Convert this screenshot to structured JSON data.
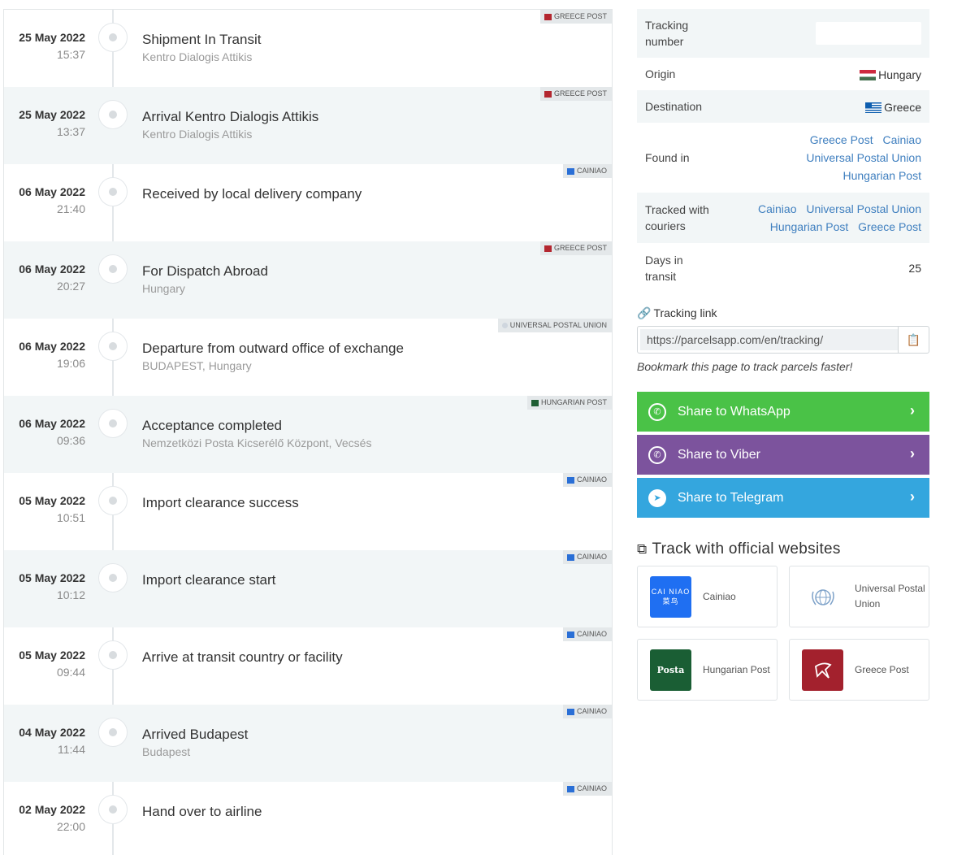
{
  "events": [
    {
      "date": "25 May 2022",
      "time": "15:37",
      "title": "Shipment In Transit",
      "location": "Kentro Dialogis Attikis",
      "courier": "GREECE POST",
      "courier_icon": "greece-post"
    },
    {
      "date": "25 May 2022",
      "time": "13:37",
      "title": "Arrival Kentro Dialogis Attikis",
      "location": "Kentro Dialogis Attikis",
      "courier": "GREECE POST",
      "courier_icon": "greece-post"
    },
    {
      "date": "06 May 2022",
      "time": "21:40",
      "title": "Received by local delivery company",
      "location": "",
      "courier": "CAINIAO",
      "courier_icon": "cainiao"
    },
    {
      "date": "06 May 2022",
      "time": "20:27",
      "title": "For Dispatch Abroad",
      "location": "Hungary",
      "courier": "GREECE POST",
      "courier_icon": "greece-post"
    },
    {
      "date": "06 May 2022",
      "time": "19:06",
      "title": "Departure from outward office of exchange",
      "location": "BUDAPEST, Hungary",
      "courier": "UNIVERSAL POSTAL UNION",
      "courier_icon": "upu"
    },
    {
      "date": "06 May 2022",
      "time": "09:36",
      "title": "Acceptance completed",
      "location": "Nemzetközi Posta Kicserélő Központ, Vecsés",
      "courier": "HUNGARIAN POST",
      "courier_icon": "hungarian-post"
    },
    {
      "date": "05 May 2022",
      "time": "10:51",
      "title": "Import clearance success",
      "location": "",
      "courier": "CAINIAO",
      "courier_icon": "cainiao"
    },
    {
      "date": "05 May 2022",
      "time": "10:12",
      "title": "Import clearance start",
      "location": "",
      "courier": "CAINIAO",
      "courier_icon": "cainiao"
    },
    {
      "date": "05 May 2022",
      "time": "09:44",
      "title": "Arrive at transit country or facility",
      "location": "",
      "courier": "CAINIAO",
      "courier_icon": "cainiao"
    },
    {
      "date": "04 May 2022",
      "time": "11:44",
      "title": "Arrived Budapest",
      "location": "Budapest",
      "courier": "CAINIAO",
      "courier_icon": "cainiao"
    },
    {
      "date": "02 May 2022",
      "time": "22:00",
      "title": "Hand over to airline",
      "location": "",
      "courier": "CAINIAO",
      "courier_icon": "cainiao"
    }
  ],
  "info": {
    "tracking_number_label": "Tracking number",
    "tracking_number_value": "",
    "origin_label": "Origin",
    "origin_value": "Hungary",
    "destination_label": "Destination",
    "destination_value": "Greece",
    "found_in_label": "Found in",
    "found_in": [
      "Greece Post",
      "Cainiao",
      "Universal Postal Union",
      "Hungarian Post"
    ],
    "tracked_with_label": "Tracked with couriers",
    "tracked_with": [
      "Cainiao",
      "Universal Postal Union",
      "Hungarian Post",
      "Greece Post"
    ],
    "days_label": "Days in transit",
    "days_value": "25"
  },
  "tracking_link": {
    "label": "Tracking link",
    "url": "https://parcelsapp.com/en/tracking/",
    "bookmark_hint": "Bookmark this page to track parcels faster!"
  },
  "share": {
    "whatsapp": "Share to WhatsApp",
    "viber": "Share to Viber",
    "telegram": "Share to Telegram"
  },
  "official": {
    "title": "Track with official websites",
    "couriers": [
      {
        "name": "Cainiao",
        "logo_text": "CAI NIAO 菜鸟"
      },
      {
        "name": "Universal Postal Union",
        "logo_text": ""
      },
      {
        "name": "Hungarian Post",
        "logo_text": "Posta"
      },
      {
        "name": "Greece Post",
        "logo_text": ""
      }
    ]
  },
  "colors": {
    "accent_link": "#3f7fbf",
    "whatsapp": "#4ac247",
    "viber": "#7c539d",
    "telegram": "#34a6de",
    "alt_row": "#f2f6f7"
  }
}
